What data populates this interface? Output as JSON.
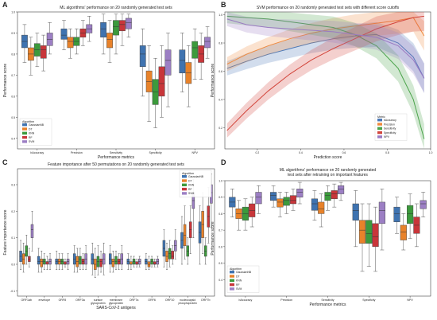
{
  "palette": {
    "GaussianNB": "#3f73b0",
    "DT": "#e8822a",
    "KNN": "#3c9a3c",
    "RF": "#c8363a",
    "SVM": "#9c7fc4",
    "Metric_bAccuracy": "#4a78b8",
    "Metric_Precision": "#f08a3e",
    "Metric_Sensitivity": "#4aa34a",
    "Metric_Specificity": "#d2443a",
    "Metric_NPV": "#9a7ac2"
  },
  "chart_data": [
    {
      "panel_letter": "A",
      "type": "box",
      "title": "ML algorithms' performance on 20 randomly generated test sets",
      "xlabel": "Performance metrics",
      "ylabel": "Performance score",
      "ylim": [
        0.35,
        1.0
      ],
      "yticks": [
        "0.4",
        "0.5",
        "0.6",
        "0.7",
        "0.8",
        "0.9",
        "1.0"
      ],
      "ytick_values": [
        0.4,
        0.5,
        0.6,
        0.7,
        0.8,
        0.9,
        1.0
      ],
      "categories": [
        "bAccuracy",
        "Precision",
        "Sensitivity",
        "Specificity",
        "NPV"
      ],
      "legend_title": "Algorithm",
      "legend_position": "bottom-left",
      "series": [
        {
          "name": "GaussianNB",
          "values": [
            [
              0.76,
              0.83,
              0.86,
              0.89,
              0.94
            ],
            [
              0.82,
              0.87,
              0.89,
              0.92,
              0.96
            ],
            [
              0.8,
              0.88,
              0.92,
              0.95,
              0.99
            ],
            [
              0.6,
              0.74,
              0.8,
              0.84,
              0.92
            ],
            [
              0.62,
              0.71,
              0.77,
              0.82,
              0.9
            ]
          ]
        },
        {
          "name": "DT",
          "values": [
            [
              0.7,
              0.77,
              0.8,
              0.83,
              0.88
            ],
            [
              0.78,
              0.83,
              0.86,
              0.88,
              0.92
            ],
            [
              0.76,
              0.83,
              0.87,
              0.9,
              0.96
            ],
            [
              0.48,
              0.62,
              0.67,
              0.72,
              0.84
            ],
            [
              0.55,
              0.66,
              0.71,
              0.76,
              0.84
            ]
          ]
        },
        {
          "name": "KNN",
          "values": [
            [
              0.74,
              0.79,
              0.82,
              0.85,
              0.9
            ],
            [
              0.8,
              0.84,
              0.86,
              0.88,
              0.92
            ],
            [
              0.8,
              0.89,
              0.93,
              0.96,
              0.99
            ],
            [
              0.45,
              0.56,
              0.62,
              0.68,
              0.78
            ],
            [
              0.68,
              0.78,
              0.83,
              0.86,
              0.92
            ]
          ]
        },
        {
          "name": "RF",
          "values": [
            [
              0.72,
              0.78,
              0.82,
              0.84,
              0.89
            ],
            [
              0.84,
              0.88,
              0.9,
              0.92,
              0.96
            ],
            [
              0.84,
              0.91,
              0.94,
              0.96,
              0.99
            ],
            [
              0.5,
              0.6,
              0.66,
              0.74,
              0.84
            ],
            [
              0.68,
              0.76,
              0.8,
              0.84,
              0.9
            ]
          ]
        },
        {
          "name": "SVM",
          "values": [
            [
              0.8,
              0.84,
              0.87,
              0.9,
              0.95
            ],
            [
              0.86,
              0.9,
              0.92,
              0.94,
              0.98
            ],
            [
              0.88,
              0.92,
              0.95,
              0.97,
              0.99
            ],
            [
              0.55,
              0.7,
              0.77,
              0.82,
              0.9
            ],
            [
              0.78,
              0.83,
              0.86,
              0.88,
              0.93
            ]
          ]
        }
      ]
    },
    {
      "panel_letter": "B",
      "type": "line",
      "title": "SVM performance on 20 randomly generated test sets with different score cutoffs",
      "xlabel": "Prediction score",
      "ylabel": "Performance score",
      "xlim": [
        0.05,
        1.0
      ],
      "ylim": [
        0.05,
        1.02
      ],
      "xticks": [
        "0.2",
        "0.4",
        "0.6",
        "0.8",
        "1.0"
      ],
      "xtick_values": [
        0.2,
        0.4,
        0.6,
        0.8,
        1.0
      ],
      "yticks": [
        "0.2",
        "0.4",
        "0.6",
        "0.8",
        "1.0"
      ],
      "ytick_values": [
        0.2,
        0.4,
        0.6,
        0.8,
        1.0
      ],
      "legend_title": "Metric",
      "legend_position": "lower-right",
      "x": [
        0.06,
        0.15,
        0.25,
        0.35,
        0.45,
        0.55,
        0.65,
        0.75,
        0.85,
        0.92,
        0.97
      ],
      "series": [
        {
          "name": "bAccuracy",
          "values": [
            0.62,
            0.67,
            0.72,
            0.76,
            0.8,
            0.83,
            0.85,
            0.86,
            0.8,
            0.7,
            0.55
          ]
        },
        {
          "name": "Precision",
          "values": [
            0.65,
            0.72,
            0.78,
            0.83,
            0.87,
            0.9,
            0.92,
            0.94,
            0.96,
            0.98,
            0.85
          ]
        },
        {
          "name": "Sensitivity",
          "values": [
            0.99,
            0.98,
            0.97,
            0.95,
            0.93,
            0.91,
            0.86,
            0.78,
            0.62,
            0.4,
            0.12
          ]
        },
        {
          "name": "Specificity",
          "values": [
            0.18,
            0.32,
            0.46,
            0.58,
            0.68,
            0.76,
            0.83,
            0.9,
            0.95,
            0.98,
            0.99
          ]
        },
        {
          "name": "NPV",
          "values": [
            0.97,
            0.93,
            0.91,
            0.9,
            0.89,
            0.88,
            0.86,
            0.84,
            0.78,
            0.68,
            0.55
          ]
        }
      ]
    },
    {
      "panel_letter": "C",
      "type": "box",
      "title": "Feature importance after 50 permutations on 20 randomly generated test sets",
      "xlabel": "SARS-CoV-2 antigens",
      "ylabel": "Feature importance score",
      "ylim": [
        -0.12,
        0.36
      ],
      "yticks": [
        "-0.1",
        "0.0",
        "0.1",
        "0.2",
        "0.3"
      ],
      "ytick_values": [
        -0.1,
        0.0,
        0.1,
        0.2,
        0.3
      ],
      "categories": [
        "ORF1ab",
        "envelope",
        "ORF8",
        "ORF3a",
        "surface glycoprotein",
        "membrane glycoprotein",
        "ORF7a",
        "ORF6",
        "ORF10",
        "nucleocapsid phosphoprotein",
        "ORF7b"
      ],
      "legend_title": "Algorithm",
      "legend_position": "top-right",
      "series": [
        {
          "name": "GaussianNB",
          "values": [
            [
              -0.02,
              0.01,
              0.03,
              0.05,
              0.09
            ],
            [
              -0.03,
              0.0,
              0.01,
              0.03,
              0.06
            ],
            [
              -0.02,
              0.0,
              0.01,
              0.02,
              0.05
            ],
            [
              -0.03,
              0.0,
              0.02,
              0.04,
              0.07
            ],
            [
              -0.04,
              0.0,
              0.02,
              0.04,
              0.08
            ],
            [
              -0.03,
              0.0,
              0.02,
              0.04,
              0.07
            ],
            [
              -0.02,
              0.0,
              0.01,
              0.02,
              0.04
            ],
            [
              -0.02,
              0.0,
              0.01,
              0.02,
              0.04
            ],
            [
              -0.01,
              0.03,
              0.06,
              0.09,
              0.13
            ],
            [
              0.0,
              0.06,
              0.09,
              0.12,
              0.18
            ],
            [
              0.0,
              0.08,
              0.12,
              0.16,
              0.22
            ]
          ]
        },
        {
          "name": "DT",
          "values": [
            [
              -0.03,
              0.0,
              0.02,
              0.04,
              0.08
            ],
            [
              -0.03,
              -0.01,
              0.01,
              0.02,
              0.05
            ],
            [
              -0.02,
              0.0,
              0.01,
              0.02,
              0.04
            ],
            [
              -0.03,
              -0.01,
              0.01,
              0.03,
              0.06
            ],
            [
              -0.05,
              -0.02,
              0.0,
              0.02,
              0.06
            ],
            [
              -0.03,
              -0.01,
              0.01,
              0.02,
              0.05
            ],
            [
              -0.02,
              0.0,
              0.0,
              0.01,
              0.03
            ],
            [
              -0.02,
              -0.01,
              0.0,
              0.01,
              0.03
            ],
            [
              -0.02,
              0.01,
              0.03,
              0.05,
              0.08
            ],
            [
              0.02,
              0.07,
              0.11,
              0.15,
              0.22
            ],
            [
              0.04,
              0.1,
              0.15,
              0.2,
              0.27
            ]
          ]
        },
        {
          "name": "KNN",
          "values": [
            [
              0.0,
              0.03,
              0.05,
              0.07,
              0.11
            ],
            [
              -0.02,
              0.0,
              0.01,
              0.02,
              0.04
            ],
            [
              -0.02,
              0.0,
              0.01,
              0.02,
              0.04
            ],
            [
              -0.02,
              0.0,
              0.02,
              0.03,
              0.06
            ],
            [
              -0.04,
              -0.01,
              0.01,
              0.03,
              0.07
            ],
            [
              -0.02,
              0.0,
              0.01,
              0.03,
              0.05
            ],
            [
              -0.01,
              0.0,
              0.01,
              0.02,
              0.03
            ],
            [
              -0.01,
              0.0,
              0.01,
              0.02,
              0.03
            ],
            [
              -0.01,
              0.02,
              0.04,
              0.06,
              0.09
            ],
            [
              0.0,
              0.03,
              0.05,
              0.07,
              0.1
            ],
            [
              0.0,
              0.03,
              0.05,
              0.07,
              0.1
            ]
          ]
        },
        {
          "name": "RF",
          "values": [
            [
              -0.01,
              0.01,
              0.02,
              0.03,
              0.06
            ],
            [
              -0.02,
              0.0,
              0.01,
              0.01,
              0.03
            ],
            [
              -0.01,
              0.0,
              0.0,
              0.01,
              0.02
            ],
            [
              -0.02,
              0.0,
              0.01,
              0.02,
              0.04
            ],
            [
              -0.03,
              -0.01,
              0.01,
              0.02,
              0.05
            ],
            [
              -0.02,
              0.0,
              0.01,
              0.02,
              0.04
            ],
            [
              -0.01,
              0.0,
              0.0,
              0.01,
              0.02
            ],
            [
              -0.01,
              0.0,
              0.0,
              0.01,
              0.02
            ],
            [
              0.0,
              0.02,
              0.03,
              0.05,
              0.07
            ],
            [
              0.04,
              0.1,
              0.13,
              0.16,
              0.22
            ],
            [
              0.08,
              0.14,
              0.18,
              0.22,
              0.29
            ]
          ]
        },
        {
          "name": "SVM",
          "values": [
            [
              0.05,
              0.1,
              0.13,
              0.15,
              0.2
            ],
            [
              -0.02,
              0.0,
              0.01,
              0.02,
              0.04
            ],
            [
              -0.02,
              0.0,
              0.01,
              0.02,
              0.04
            ],
            [
              -0.02,
              0.0,
              0.02,
              0.04,
              0.07
            ],
            [
              -0.04,
              0.0,
              0.02,
              0.04,
              0.08
            ],
            [
              -0.02,
              0.0,
              0.02,
              0.04,
              0.07
            ],
            [
              -0.01,
              0.0,
              0.01,
              0.02,
              0.03
            ],
            [
              -0.01,
              0.0,
              0.01,
              0.02,
              0.03
            ],
            [
              0.02,
              0.05,
              0.07,
              0.09,
              0.13
            ],
            [
              0.1,
              0.21,
              0.24,
              0.27,
              0.32
            ],
            [
              0.14,
              0.23,
              0.27,
              0.3,
              0.34
            ]
          ]
        }
      ]
    },
    {
      "panel_letter": "D",
      "type": "box",
      "title": "ML algorithms' performance on 20 randomly generated test sets after retraining on important features",
      "title_lines": [
        "ML algorithms' performance on 20 randomly generated",
        "test sets after retraining on important features"
      ],
      "xlabel": "Performance metrics",
      "ylabel": "Performance score",
      "ylim": [
        0.3,
        1.0
      ],
      "yticks": [
        "0.4",
        "0.5",
        "0.6",
        "0.7",
        "0.8",
        "0.9",
        "1.0"
      ],
      "ytick_values": [
        0.4,
        0.5,
        0.6,
        0.7,
        0.8,
        0.9,
        1.0
      ],
      "categories": [
        "bAccuracy",
        "Precision",
        "Sensitivity",
        "Specificity",
        "NPV"
      ],
      "legend_title": "Algorithm",
      "legend_position": "bottom-left",
      "series": [
        {
          "name": "GaussianNB",
          "values": [
            [
              0.78,
              0.84,
              0.87,
              0.9,
              0.95
            ],
            [
              0.84,
              0.88,
              0.91,
              0.93,
              0.97
            ],
            [
              0.76,
              0.82,
              0.86,
              0.89,
              0.94
            ],
            [
              0.6,
              0.76,
              0.82,
              0.86,
              0.94
            ],
            [
              0.68,
              0.75,
              0.8,
              0.84,
              0.9
            ]
          ]
        },
        {
          "name": "DT",
          "values": [
            [
              0.7,
              0.77,
              0.8,
              0.83,
              0.88
            ],
            [
              0.78,
              0.84,
              0.87,
              0.89,
              0.93
            ],
            [
              0.72,
              0.8,
              0.83,
              0.87,
              0.92
            ],
            [
              0.45,
              0.62,
              0.7,
              0.76,
              0.86
            ],
            [
              0.58,
              0.64,
              0.69,
              0.73,
              0.8
            ]
          ]
        },
        {
          "name": "KNN",
          "values": [
            [
              0.7,
              0.76,
              0.8,
              0.84,
              0.89
            ],
            [
              0.8,
              0.85,
              0.88,
              0.9,
              0.93
            ],
            [
              0.82,
              0.88,
              0.91,
              0.93,
              0.97
            ],
            [
              0.48,
              0.62,
              0.68,
              0.76,
              0.86
            ],
            [
              0.65,
              0.74,
              0.8,
              0.85,
              0.92
            ]
          ]
        },
        {
          "name": "RF",
          "values": [
            [
              0.72,
              0.78,
              0.82,
              0.86,
              0.9
            ],
            [
              0.82,
              0.86,
              0.88,
              0.91,
              0.95
            ],
            [
              0.84,
              0.89,
              0.92,
              0.94,
              0.98
            ],
            [
              0.45,
              0.6,
              0.66,
              0.74,
              0.84
            ],
            [
              0.6,
              0.68,
              0.73,
              0.78,
              0.86
            ]
          ]
        },
        {
          "name": "SVM",
          "values": [
            [
              0.8,
              0.86,
              0.9,
              0.93,
              0.97
            ],
            [
              0.86,
              0.9,
              0.93,
              0.95,
              0.99
            ],
            [
              0.88,
              0.92,
              0.95,
              0.97,
              0.99
            ],
            [
              0.58,
              0.74,
              0.82,
              0.87,
              0.95
            ],
            [
              0.78,
              0.83,
              0.86,
              0.88,
              0.93
            ]
          ]
        }
      ]
    }
  ]
}
